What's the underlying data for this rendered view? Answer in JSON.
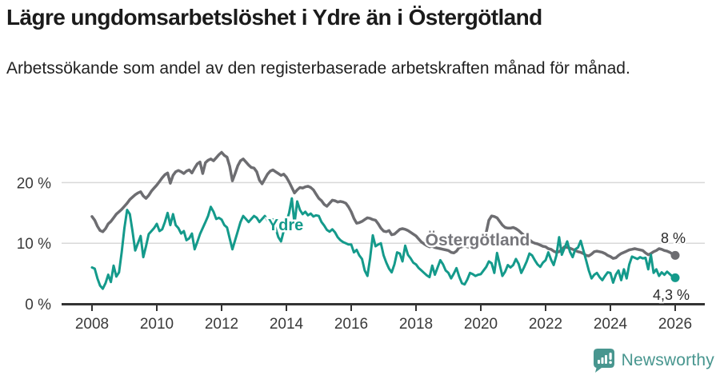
{
  "header": {
    "title": "Lägre ungdomsarbetslöshet i Ydre än i Östergötland",
    "subtitle": "Arbetssökande som andel av den registerbaserade arbetskraften månad för månad."
  },
  "chart_data": {
    "type": "line",
    "frequency": "monthly",
    "x_range": [
      "2008-01",
      "2026-01"
    ],
    "grid": "horizontal",
    "x_axis": {
      "start_year": 2008,
      "tick_years": [
        2008,
        2010,
        2012,
        2014,
        2016,
        2018,
        2020,
        2022,
        2024,
        2026
      ]
    },
    "y_axis": {
      "unit": "%",
      "range": [
        0,
        27
      ],
      "ticks": [
        {
          "value": 0,
          "label": "0 %"
        },
        {
          "value": 10,
          "label": "10 %"
        },
        {
          "value": 20,
          "label": "20 %"
        }
      ]
    },
    "series": [
      {
        "id": "ostergotland",
        "name": "Östergötland",
        "color": "#6d6d71",
        "label_color": "#76767b",
        "stroke_width": 3.5,
        "end_label": "8 %",
        "values": [
          14.4,
          13.8,
          12.8,
          12.1,
          11.9,
          12.4,
          13.2,
          13.6,
          14.2,
          14.8,
          15.2,
          15.6,
          16.1,
          16.6,
          17.2,
          17.6,
          18.0,
          18.3,
          18.5,
          17.8,
          17.4,
          17.9,
          18.6,
          19.1,
          19.6,
          20.2,
          20.8,
          21.3,
          21.6,
          19.9,
          21.2,
          21.8,
          22.0,
          21.8,
          21.5,
          21.9,
          22.1,
          21.6,
          22.4,
          23.1,
          23.4,
          21.5,
          23.3,
          23.7,
          23.9,
          23.6,
          24.1,
          24.6,
          25.0,
          24.5,
          24.2,
          22.7,
          20.3,
          21.5,
          22.8,
          23.6,
          23.9,
          23.4,
          22.9,
          22.5,
          22.4,
          21.8,
          20.4,
          19.8,
          20.6,
          21.4,
          21.9,
          22.1,
          21.8,
          21.5,
          21.2,
          21.4,
          20.9,
          20.1,
          19.2,
          18.3,
          18.8,
          19.2,
          19.1,
          19.3,
          19.4,
          19.2,
          18.8,
          18.1,
          17.4,
          17.0,
          16.4,
          16.1,
          16.6,
          17.1,
          17.0,
          16.8,
          16.9,
          16.8,
          16.6,
          16.0,
          15.2,
          14.1,
          13.3,
          13.4,
          13.6,
          13.9,
          14.2,
          14.1,
          13.9,
          13.8,
          13.2,
          12.5,
          12.0,
          11.9,
          12.1,
          11.4,
          11.5,
          11.9,
          12.3,
          12.4,
          12.3,
          12.1,
          11.8,
          11.5,
          11.2,
          10.7,
          10.2,
          9.9,
          9.6,
          9.4,
          9.5,
          9.3,
          9.2,
          9.1,
          9.0,
          8.9,
          8.8,
          8.5,
          8.4,
          8.7,
          9.3,
          9.4,
          9.6,
          9.4,
          9.3,
          9.4,
          9.6,
          9.9,
          10.2,
          10.4,
          11.8,
          13.8,
          14.5,
          14.4,
          14.2,
          13.6,
          13.0,
          12.6,
          12.5,
          12.5,
          12.6,
          12.4,
          12.1,
          11.7,
          11.3,
          10.9,
          10.6,
          10.2,
          10.0,
          9.9,
          9.7,
          9.5,
          9.4,
          9.1,
          9.0,
          8.7,
          8.5,
          8.6,
          9.0,
          9.4,
          9.3,
          9.2,
          9.0,
          8.8,
          8.6,
          8.5,
          8.3,
          8.0,
          7.9,
          8.2,
          8.6,
          8.7,
          8.6,
          8.5,
          8.3,
          8.0,
          7.8,
          7.5,
          7.6,
          8.0,
          8.3,
          8.5,
          8.7,
          8.9,
          9.0,
          9.1,
          9.0,
          8.9,
          8.8,
          8.4,
          8.1,
          8.3,
          8.6,
          8.8,
          9.1,
          9.0,
          8.8,
          8.7,
          8.5,
          8.2,
          8.0
        ]
      },
      {
        "id": "ydre",
        "name": "Ydre",
        "color": "#149a8b",
        "label_color": "#149a8b",
        "stroke_width": 3,
        "end_label": "4,3 %",
        "values": [
          6.0,
          5.8,
          4.2,
          3.0,
          2.5,
          3.4,
          4.8,
          3.6,
          6.3,
          4.5,
          5.2,
          8.5,
          12.5,
          15.5,
          14.8,
          12.0,
          8.8,
          10.0,
          11.2,
          7.7,
          9.5,
          11.5,
          12.0,
          12.5,
          13.2,
          12.0,
          12.3,
          13.5,
          15.0,
          13.0,
          14.8,
          13.0,
          12.5,
          11.6,
          12.0,
          10.5,
          10.8,
          11.6,
          9.0,
          10.2,
          11.5,
          12.5,
          13.5,
          14.5,
          16.0,
          15.2,
          14.0,
          14.2,
          13.9,
          13.0,
          12.6,
          10.8,
          9.0,
          10.5,
          12.0,
          13.5,
          14.5,
          14.0,
          13.5,
          14.0,
          14.5,
          14.2,
          13.5,
          14.0,
          14.5,
          13.8,
          14.0,
          13.9,
          12.5,
          11.0,
          10.3,
          12.0,
          13.5,
          15.0,
          17.4,
          13.2,
          16.9,
          15.5,
          14.8,
          15.2,
          14.6,
          14.9,
          14.4,
          14.6,
          14.5,
          13.5,
          12.9,
          12.2,
          11.9,
          12.3,
          11.8,
          11.0,
          10.5,
          10.2,
          10.0,
          9.8,
          9.8,
          8.5,
          8.9,
          8.0,
          7.4,
          5.5,
          4.6,
          7.5,
          11.3,
          9.5,
          9.8,
          10.0,
          8.0,
          6.8,
          5.8,
          5.2,
          6.5,
          8.5,
          8.3,
          7.0,
          9.6,
          8.1,
          7.5,
          6.8,
          6.5,
          5.9,
          5.5,
          5.1,
          4.7,
          4.4,
          6.3,
          4.8,
          6.0,
          7.2,
          6.5,
          5.5,
          5.1,
          4.2,
          5.0,
          5.9,
          4.5,
          3.4,
          3.2,
          4.0,
          5.1,
          4.9,
          4.6,
          4.8,
          4.9,
          5.5,
          6.1,
          7.0,
          6.7,
          5.1,
          8.4,
          6.5,
          4.6,
          5.3,
          6.4,
          6.0,
          6.4,
          7.4,
          6.6,
          5.1,
          6.0,
          7.0,
          8.3,
          8.0,
          7.2,
          6.5,
          6.1,
          6.8,
          7.2,
          8.5,
          7.3,
          6.4,
          8.0,
          11.0,
          8.1,
          9.2,
          10.3,
          8.6,
          7.7,
          9.0,
          9.3,
          10.4,
          8.8,
          7.2,
          5.5,
          4.2,
          4.8,
          5.1,
          4.4,
          3.9,
          4.6,
          5.2,
          5.1,
          3.5,
          4.8,
          5.5,
          3.9,
          5.7,
          4.2,
          6.5,
          7.8,
          7.6,
          7.4,
          7.7,
          7.5,
          7.6,
          5.7,
          8.1,
          5.1,
          5.7,
          4.6,
          5.2,
          4.8,
          5.3,
          4.9,
          4.5,
          4.3
        ]
      }
    ]
  },
  "footer": {
    "brand": "Newsworthy",
    "brand_color": "#48968f"
  }
}
